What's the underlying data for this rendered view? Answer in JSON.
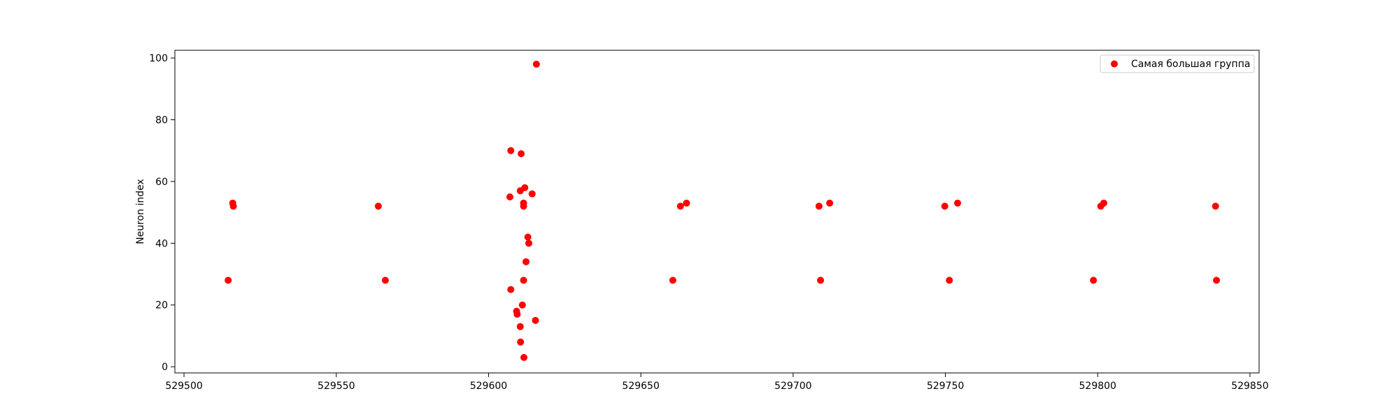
{
  "chart_data": {
    "type": "scatter",
    "title": "",
    "xlabel": "",
    "ylabel": "Neuron index",
    "xlim": [
      529497,
      529853
    ],
    "ylim": [
      -2,
      102.5
    ],
    "xticks": [
      529500,
      529550,
      529600,
      529650,
      529700,
      529750,
      529800,
      529850
    ],
    "yticks": [
      0,
      20,
      40,
      60,
      80,
      100
    ],
    "xtick_labels": [
      "529500",
      "529550",
      "529600",
      "529650",
      "529700",
      "529750",
      "529800",
      "529850"
    ],
    "ytick_labels": [
      "0",
      "20",
      "40",
      "60",
      "80",
      "100"
    ],
    "grid": false,
    "legend_position": "top-right",
    "series": [
      {
        "name": "Самая большая группа",
        "color": "#ff0000",
        "marker": "circle",
        "points": [
          [
            529514.5,
            28
          ],
          [
            529516.0,
            53
          ],
          [
            529516.2,
            52
          ],
          [
            529563.8,
            52
          ],
          [
            529566.1,
            28
          ],
          [
            529607.0,
            55
          ],
          [
            529607.3,
            70
          ],
          [
            529607.3,
            25
          ],
          [
            529609.2,
            18
          ],
          [
            529609.4,
            17
          ],
          [
            529610.4,
            57
          ],
          [
            529610.4,
            13
          ],
          [
            529610.5,
            8
          ],
          [
            529610.7,
            69
          ],
          [
            529611.1,
            20
          ],
          [
            529611.5,
            53
          ],
          [
            529611.5,
            52
          ],
          [
            529611.5,
            28
          ],
          [
            529611.6,
            3
          ],
          [
            529611.9,
            58
          ],
          [
            529612.3,
            34
          ],
          [
            529612.9,
            42
          ],
          [
            529613.2,
            40
          ],
          [
            529614.3,
            56
          ],
          [
            529615.4,
            15
          ],
          [
            529615.7,
            98
          ],
          [
            529660.5,
            28
          ],
          [
            529663.0,
            52
          ],
          [
            529665.0,
            53
          ],
          [
            529708.5,
            52
          ],
          [
            529709.0,
            28
          ],
          [
            529712.0,
            53
          ],
          [
            529749.8,
            52
          ],
          [
            529751.3,
            28
          ],
          [
            529754.0,
            53
          ],
          [
            529798.6,
            28
          ],
          [
            529801.0,
            52
          ],
          [
            529802.0,
            53
          ],
          [
            529838.7,
            52
          ],
          [
            529839.0,
            28
          ]
        ]
      }
    ]
  }
}
